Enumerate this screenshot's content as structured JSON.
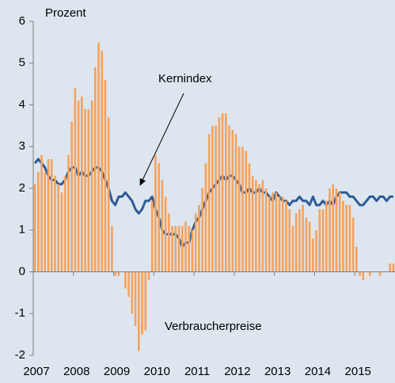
{
  "chart_data": {
    "type": "combo",
    "y_label": "Prozent",
    "categories": [
      "2007",
      null,
      null,
      null,
      null,
      null,
      null,
      null,
      null,
      null,
      null,
      null,
      "2008",
      null,
      null,
      null,
      null,
      null,
      null,
      null,
      null,
      null,
      null,
      null,
      "2009",
      null,
      null,
      null,
      null,
      null,
      null,
      null,
      null,
      null,
      null,
      null,
      "2010",
      null,
      null,
      null,
      null,
      null,
      null,
      null,
      null,
      null,
      null,
      null,
      "2011",
      null,
      null,
      null,
      null,
      null,
      null,
      null,
      null,
      null,
      null,
      null,
      "2012",
      null,
      null,
      null,
      null,
      null,
      null,
      null,
      null,
      null,
      null,
      null,
      "2013",
      null,
      null,
      null,
      null,
      null,
      null,
      null,
      null,
      null,
      null,
      null,
      "2014",
      null,
      null,
      null,
      null,
      null,
      null,
      null,
      null,
      null,
      null,
      null,
      "2015",
      null,
      null,
      null,
      null,
      null,
      null,
      null,
      null,
      null,
      null,
      null
    ],
    "series": [
      {
        "name": "Verbraucherpreise",
        "type": "bar",
        "color": "#f5a25d",
        "values": [
          2.1,
          2.4,
          2.8,
          2.4,
          2.7,
          2.7,
          2.3,
          2.1,
          1.9,
          2.3,
          2.8,
          3.6,
          4.4,
          4.1,
          4.2,
          3.9,
          3.9,
          4.1,
          4.9,
          5.5,
          5.3,
          4.6,
          3.7,
          1.1,
          -0.1,
          -0.1,
          0.0,
          -0.4,
          -0.6,
          -1.0,
          -1.3,
          -1.9,
          -1.5,
          -1.4,
          -0.2,
          1.7,
          2.8,
          2.6,
          2.2,
          1.8,
          1.4,
          1.1,
          1.1,
          1.1,
          1.1,
          1.2,
          1.1,
          1.0,
          1.4,
          1.6,
          2.0,
          2.6,
          3.3,
          3.5,
          3.5,
          3.7,
          3.8,
          3.8,
          3.5,
          3.4,
          3.3,
          3.0,
          3.0,
          2.9,
          2.6,
          2.3,
          2.2,
          2.1,
          2.2,
          2.0,
          1.8,
          1.9,
          1.9,
          1.8,
          1.8,
          1.7,
          1.5,
          1.1,
          1.4,
          1.5,
          1.6,
          1.3,
          1.2,
          0.8,
          1.0,
          1.5,
          1.5,
          1.7,
          2.0,
          2.1,
          2.0,
          1.9,
          1.7,
          1.6,
          1.6,
          1.3,
          0.6,
          -0.1,
          -0.2,
          0.0,
          -0.1,
          0.0,
          0.0,
          -0.1,
          0.0,
          0.0,
          0.2,
          0.2
        ]
      },
      {
        "name": "Kernindex",
        "type": "line",
        "color": "#2e5b96",
        "values": [
          2.6,
          2.7,
          2.6,
          2.5,
          2.3,
          2.2,
          2.2,
          2.1,
          2.1,
          2.2,
          2.4,
          2.5,
          2.5,
          2.3,
          2.4,
          2.3,
          2.3,
          2.4,
          2.5,
          2.5,
          2.4,
          2.2,
          2.0,
          1.7,
          1.6,
          1.8,
          1.8,
          1.9,
          1.8,
          1.7,
          1.5,
          1.4,
          1.5,
          1.7,
          1.7,
          1.8,
          1.5,
          1.3,
          1.0,
          0.9,
          0.9,
          0.9,
          0.9,
          0.8,
          0.6,
          0.7,
          0.7,
          1.0,
          1.2,
          1.3,
          1.5,
          1.7,
          1.9,
          2.0,
          2.1,
          2.2,
          2.3,
          2.2,
          2.3,
          2.3,
          2.2,
          2.1,
          1.9,
          1.9,
          2.0,
          1.9,
          1.9,
          2.0,
          1.9,
          1.9,
          1.8,
          1.7,
          1.9,
          1.8,
          1.7,
          1.7,
          1.6,
          1.7,
          1.7,
          1.8,
          1.7,
          1.7,
          1.6,
          1.8,
          1.6,
          1.6,
          1.7,
          1.6,
          1.7,
          1.6,
          1.8,
          1.9,
          1.9,
          1.9,
          1.8,
          1.8,
          1.7,
          1.6,
          1.6,
          1.7,
          1.8,
          1.8,
          1.7,
          1.8,
          1.8,
          1.7,
          1.8,
          1.8
        ]
      }
    ],
    "ylim": [
      -2,
      6
    ],
    "yticks": [
      -2,
      -1,
      0,
      1,
      2,
      3,
      4,
      5,
      6
    ],
    "grid": false
  }
}
